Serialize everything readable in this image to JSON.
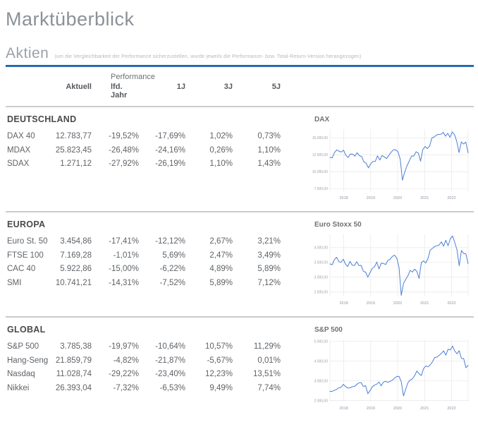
{
  "page": {
    "title": "Marktüberblick",
    "section_heading": "Aktien",
    "section_note": "(um die Vergleichbarkeit der Performance sicherzustellen, wurde jeweils die Performance- bzw. Total-Return-Version herangezogen)"
  },
  "colors": {
    "accent_rule_blue": "#3273b5",
    "chart_line_blue": "#4b7fd6",
    "divider_gray": "#cbcbcb",
    "heading_gray": "#9ba1a8"
  },
  "table": {
    "group_header": "Performance",
    "columns": [
      "Aktuell",
      "lfd. Jahr",
      "1J",
      "3J",
      "5J"
    ],
    "sections": [
      {
        "name": "DEUTSCHLAND",
        "rows": [
          {
            "label": "DAX 40",
            "values": [
              "12.783,77",
              "-19,52%",
              "-17,69%",
              "1,02%",
              "0,73%"
            ]
          },
          {
            "label": "MDAX",
            "values": [
              "25.823,45",
              "-26,48%",
              "-24,16%",
              "0,26%",
              "1,10%"
            ]
          },
          {
            "label": "SDAX",
            "values": [
              "1.271,12",
              "-27,92%",
              "-26,19%",
              "1,10%",
              "1,43%"
            ]
          }
        ]
      },
      {
        "name": "EUROPA",
        "rows": [
          {
            "label": "Euro St. 50",
            "values": [
              "3.454,86",
              "-17,41%",
              "-12,12%",
              "2,67%",
              "3,21%"
            ]
          },
          {
            "label": "FTSE 100",
            "values": [
              "7.169,28",
              "-1,01%",
              "5,69%",
              "2,47%",
              "3,49%"
            ]
          },
          {
            "label": "CAC 40",
            "values": [
              "5.922,86",
              "-15,00%",
              "-6,22%",
              "4,89%",
              "5,89%"
            ]
          },
          {
            "label": "SMI",
            "values": [
              "10.741,21",
              "-14,31%",
              "-7,52%",
              "5,89%",
              "7,12%"
            ]
          }
        ]
      },
      {
        "name": "GLOBAL",
        "rows": [
          {
            "label": "S&P 500",
            "values": [
              "3.785,38",
              "-19,97%",
              "-10,64%",
              "10,57%",
              "11,29%"
            ]
          },
          {
            "label": "Hang-Seng",
            "values": [
              "21.859,79",
              "-4,82%",
              "-21,87%",
              "-5,67%",
              "0,01%"
            ]
          },
          {
            "label": "Nasdaq",
            "values": [
              "11.028,74",
              "-29,22%",
              "-23,40%",
              "12,23%",
              "13,51%"
            ]
          },
          {
            "label": "Nikkei",
            "values": [
              "26.393,04",
              "-7,32%",
              "-6,53%",
              "9,49%",
              "7,74%"
            ]
          }
        ]
      }
    ]
  },
  "chart_data": [
    {
      "type": "line",
      "title": "DAX",
      "x_labels": [
        "2018",
        "2019",
        "2020",
        "2021",
        "2022"
      ],
      "y_tick_labels": [
        "15.000,00",
        "12.500,00",
        "10.000,00",
        "7.500,00"
      ],
      "y_tick_values": [
        15000,
        12500,
        10000,
        7500
      ],
      "ylim": [
        7100,
        16300
      ],
      "grid": true,
      "values": [
        12118,
        12055,
        12829,
        13230,
        13024,
        12918,
        13189,
        12436,
        12097,
        12612,
        12604,
        12306,
        12806,
        12364,
        12247,
        11447,
        11257,
        10559,
        11173,
        11516,
        11526,
        12344,
        11727,
        12399,
        12189,
        11939,
        12428,
        12867,
        13236,
        13249,
        12982,
        11890,
        8742,
        9936,
        10862,
        11587,
        12311,
        12313,
        12945,
        12761,
        11556,
        13291,
        13719,
        13433,
        13786,
        15008,
        15136,
        15421,
        15531,
        15544,
        15835,
        15261,
        15689,
        15100,
        15885,
        15471,
        14461,
        12831,
        14415,
        14098,
        14388,
        12784
      ]
    },
    {
      "type": "line",
      "title": "Euro Stoxx 50",
      "x_labels": [
        "2018",
        "2019",
        "2020",
        "2021",
        "2022"
      ],
      "y_tick_labels": [
        "4.000,00",
        "3.500,00",
        "3.000,00",
        "2.500,00"
      ],
      "y_tick_values": [
        4000,
        3500,
        3000,
        2500
      ],
      "ylim": [
        2350,
        4450
      ],
      "grid": true,
      "values": [
        3450,
        3421,
        3595,
        3674,
        3527,
        3504,
        3609,
        3439,
        3362,
        3537,
        3407,
        3396,
        3525,
        3393,
        3399,
        3198,
        3173,
        3001,
        3159,
        3298,
        3352,
        3515,
        3280,
        3474,
        3467,
        3427,
        3569,
        3605,
        3704,
        3745,
        3641,
        3329,
        2386,
        2787,
        2928,
        3050,
        3234,
        3174,
        3272,
        3194,
        2958,
        3493,
        3553,
        3481,
        3636,
        3919,
        3975,
        4039,
        4064,
        4089,
        4196,
        4048,
        4251,
        4063,
        4298,
        4392,
        4175,
        3924,
        3387,
        3903,
        3803,
        3789,
        3455
      ]
    },
    {
      "type": "line",
      "title": "S&P 500",
      "x_labels": [
        "2018",
        "2019",
        "2020",
        "2021",
        "2022"
      ],
      "y_tick_labels": [
        "5.000,00",
        "4.000,00",
        "3.000,00",
        "2.000,00"
      ],
      "y_tick_values": [
        5000,
        4000,
        3000,
        2000
      ],
      "ylim": [
        1950,
        5100
      ],
      "grid": true,
      "values": [
        2470,
        2472,
        2519,
        2575,
        2648,
        2674,
        2824,
        2714,
        2641,
        2648,
        2705,
        2718,
        2816,
        2902,
        2914,
        2712,
        2760,
        2351,
        2507,
        2704,
        2784,
        2834,
        2946,
        2752,
        2942,
        2980,
        2926,
        2977,
        3038,
        3141,
        3231,
        3226,
        2954,
        2237,
        2585,
        2912,
        3044,
        3100,
        3271,
        3500,
        3363,
        3270,
        3622,
        3756,
        3714,
        3811,
        3973,
        4181,
        4204,
        4298,
        4395,
        4523,
        4308,
        4605,
        4567,
        4766,
        4516,
        4374,
        4530,
        4132,
        4132,
        3667,
        3785
      ]
    }
  ]
}
